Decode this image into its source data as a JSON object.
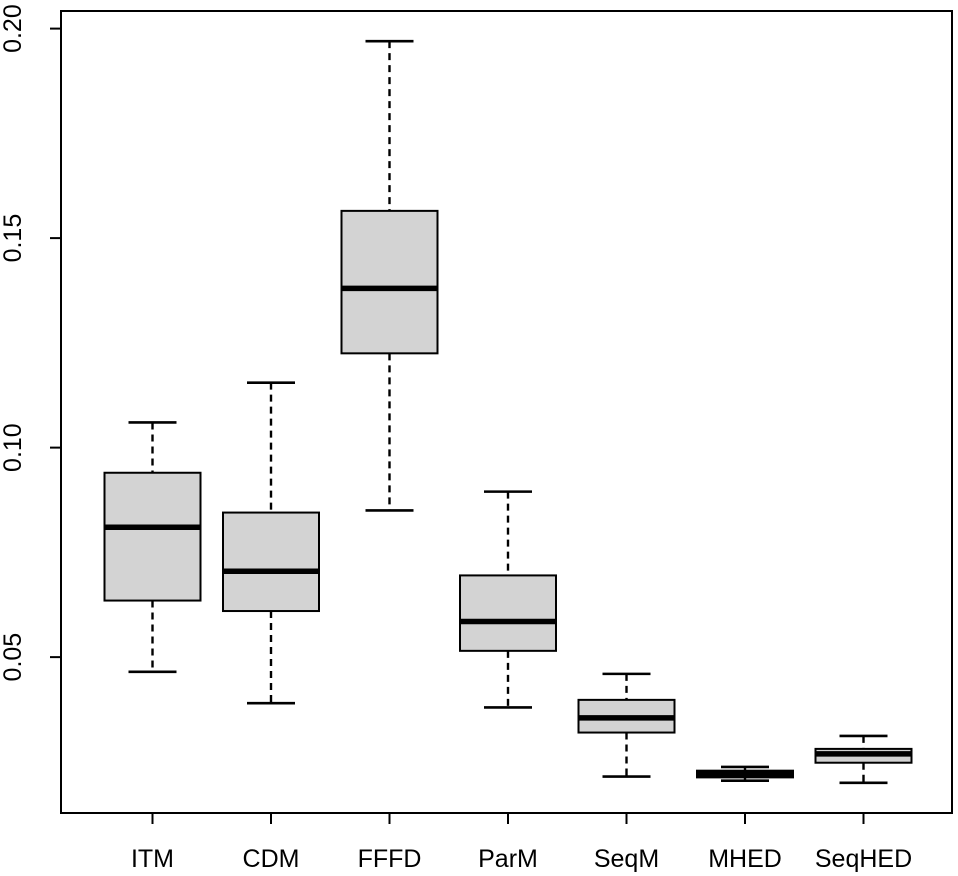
{
  "chart_data": {
    "type": "boxplot",
    "title": "",
    "xlabel": "",
    "ylabel": "",
    "categories": [
      "ITM",
      "CDM",
      "FFFD",
      "ParM",
      "SeqM",
      "MHED",
      "SeqHED"
    ],
    "series": [
      {
        "name": "ITM",
        "whisker_low": 0.0465,
        "q1": 0.0635,
        "median": 0.081,
        "q3": 0.094,
        "whisker_high": 0.106
      },
      {
        "name": "CDM",
        "whisker_low": 0.039,
        "q1": 0.061,
        "median": 0.0705,
        "q3": 0.0845,
        "whisker_high": 0.1155
      },
      {
        "name": "FFFD",
        "whisker_low": 0.085,
        "q1": 0.1225,
        "median": 0.138,
        "q3": 0.1565,
        "whisker_high": 0.197
      },
      {
        "name": "ParM",
        "whisker_low": 0.038,
        "q1": 0.0515,
        "median": 0.0585,
        "q3": 0.0695,
        "whisker_high": 0.0895
      },
      {
        "name": "SeqM",
        "whisker_low": 0.0215,
        "q1": 0.032,
        "median": 0.0355,
        "q3": 0.0398,
        "whisker_high": 0.046
      },
      {
        "name": "MHED",
        "whisker_low": 0.0205,
        "q1": 0.0213,
        "median": 0.0221,
        "q3": 0.0229,
        "whisker_high": 0.0238
      },
      {
        "name": "SeqHED",
        "whisker_low": 0.02,
        "q1": 0.0248,
        "median": 0.0269,
        "q3": 0.0281,
        "whisker_high": 0.0312
      }
    ],
    "y_axis": {
      "ticks": [
        0.05,
        0.1,
        0.15,
        0.2
      ],
      "tick_labels": [
        "0.05",
        "0.10",
        "0.15",
        "0.20"
      ],
      "range": [
        0.0128,
        0.2042
      ]
    },
    "x_axis": {
      "labels": [
        "ITM",
        "CDM",
        "FFFD",
        "ParM",
        "SeqM",
        "MHED",
        "SeqHED"
      ]
    },
    "layout_hints": {
      "grid": "off",
      "legend": "none",
      "whisker_style": "dashed"
    },
    "style": {
      "box_fill": "#d3d3d3",
      "stroke": "#000000",
      "background": "#ffffff"
    }
  }
}
